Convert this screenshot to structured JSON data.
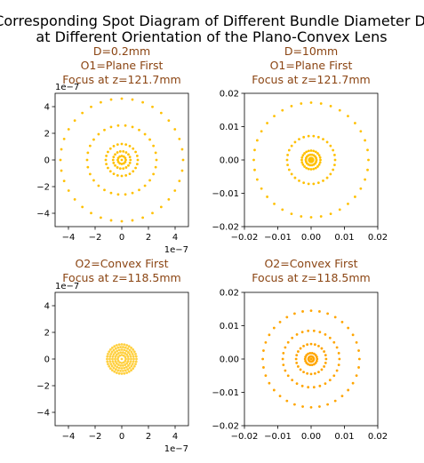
{
  "figure": {
    "suptitle_line1": "Corresponding Spot Diagram of Different Bundle Diameter D",
    "suptitle_line2": "at Different Orientation of the Plano-Convex Lens"
  },
  "chart_data": [
    {
      "type": "scatter",
      "title_lines": [
        "D=0.2mm",
        "O1=Plane First",
        "Focus at z=121.7mm"
      ],
      "xlim": [
        -5e-07,
        5e-07
      ],
      "ylim": [
        -5e-07,
        5e-07
      ],
      "xticks": [
        -4e-07,
        -2e-07,
        0,
        2e-07,
        4e-07
      ],
      "yticks": [
        -4e-07,
        -2e-07,
        0,
        2e-07,
        4e-07
      ],
      "xtick_labels": [
        "−4",
        "−2",
        "0",
        "2",
        "4"
      ],
      "ytick_labels": [
        "−4",
        "−2",
        "0",
        "2",
        "4"
      ],
      "x_multiplier": "1e−7",
      "y_multiplier": "1e−7",
      "color": "#FFC000",
      "rings": [
        {
          "radius": 4.6e-07,
          "points": 36
        },
        {
          "radius": 2.6e-07,
          "points": 30
        },
        {
          "radius": 1.2e-07,
          "points": 24
        },
        {
          "radius": 6.5e-08,
          "points": 18
        },
        {
          "radius": 3e-08,
          "points": 12
        },
        {
          "radius": 0,
          "points": 1
        }
      ]
    },
    {
      "type": "scatter",
      "title_lines": [
        "D=10mm",
        "O1=Plane First",
        "Focus at z=121.7mm"
      ],
      "xlim": [
        -0.02,
        0.02
      ],
      "ylim": [
        -0.02,
        0.02
      ],
      "xticks": [
        -0.02,
        -0.01,
        0,
        0.01,
        0.02
      ],
      "yticks": [
        -0.02,
        -0.01,
        0,
        0.01,
        0.02
      ],
      "xtick_labels": [
        "−0.02",
        "−0.01",
        "0.00",
        "0.01",
        "0.02"
      ],
      "ytick_labels": [
        "−0.02",
        "−0.01",
        "0.00",
        "0.01",
        "0.02"
      ],
      "x_multiplier": "",
      "y_multiplier": "",
      "color": "#FFC000",
      "rings": [
        {
          "radius": 0.0172,
          "points": 36
        },
        {
          "radius": 0.0072,
          "points": 30
        },
        {
          "radius": 0.0028,
          "points": 24
        },
        {
          "radius": 0.0016,
          "points": 18
        },
        {
          "radius": 0.0006,
          "points": 12
        },
        {
          "radius": 0,
          "points": 1
        }
      ]
    },
    {
      "type": "scatter",
      "title_lines": [
        "O2=Convex First",
        "Focus at z=118.5mm"
      ],
      "xlim": [
        -5e-07,
        5e-07
      ],
      "ylim": [
        -5e-07,
        5e-07
      ],
      "xticks": [
        -4e-07,
        -2e-07,
        0,
        2e-07,
        4e-07
      ],
      "yticks": [
        -4e-07,
        -2e-07,
        0,
        2e-07,
        4e-07
      ],
      "xtick_labels": [
        "−4",
        "−2",
        "0",
        "2",
        "4"
      ],
      "ytick_labels": [
        "−4",
        "−2",
        "0",
        "2",
        "4"
      ],
      "x_multiplier": "1e−7",
      "y_multiplier": "1e−7",
      "color": "#FFD040",
      "rings": [
        {
          "radius": 1.1e-07,
          "points": 36
        },
        {
          "radius": 9e-08,
          "points": 30
        },
        {
          "radius": 7e-08,
          "points": 24
        },
        {
          "radius": 5e-08,
          "points": 18
        },
        {
          "radius": 3e-08,
          "points": 12
        },
        {
          "radius": 0,
          "points": 1
        }
      ]
    },
    {
      "type": "scatter",
      "title_lines": [
        "O2=Convex First",
        "Focus at z=118.5mm"
      ],
      "xlim": [
        -0.02,
        0.02
      ],
      "ylim": [
        -0.02,
        0.02
      ],
      "xticks": [
        -0.02,
        -0.01,
        0,
        0.01,
        0.02
      ],
      "yticks": [
        -0.02,
        -0.01,
        0,
        0.01,
        0.02
      ],
      "xtick_labels": [
        "−0.02",
        "−0.01",
        "0.00",
        "0.01",
        "0.02"
      ],
      "ytick_labels": [
        "−0.02",
        "−0.01",
        "0.00",
        "0.01",
        "0.02"
      ],
      "x_multiplier": "",
      "y_multiplier": "",
      "color": "#FFA500",
      "rings": [
        {
          "radius": 0.0145,
          "points": 36
        },
        {
          "radius": 0.0085,
          "points": 30
        },
        {
          "radius": 0.0045,
          "points": 24
        },
        {
          "radius": 0.0018,
          "points": 18
        },
        {
          "radius": 0.0008,
          "points": 12
        },
        {
          "radius": 0,
          "points": 1
        }
      ]
    }
  ]
}
